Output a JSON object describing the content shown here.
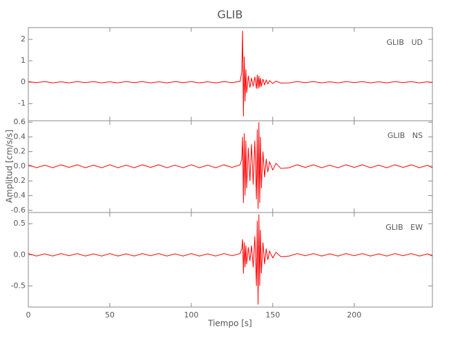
{
  "title": "GLIB",
  "xlabel": "Tiempo [s]",
  "ylabel": "Amplitud [cm/s/s]",
  "xlim": [
    0,
    248
  ],
  "xticks": [
    0,
    50,
    100,
    150,
    200
  ],
  "chart_data": [
    {
      "type": "line",
      "label": "GLIB   UD",
      "color": "#ff0000",
      "ylim": [
        -1.8,
        2.55
      ],
      "yticks": [
        -1,
        0,
        1,
        2
      ],
      "x": [
        0,
        5,
        10,
        15,
        20,
        25,
        30,
        35,
        40,
        45,
        50,
        55,
        60,
        65,
        70,
        75,
        80,
        85,
        90,
        95,
        100,
        105,
        110,
        115,
        120,
        125,
        130,
        131,
        131.5,
        132,
        132.5,
        133,
        133.5,
        134,
        135,
        136,
        137,
        138,
        139,
        140,
        140.5,
        141,
        141.5,
        142,
        142.5,
        143,
        144,
        145,
        146,
        147,
        148,
        150,
        152,
        155,
        160,
        165,
        170,
        175,
        180,
        185,
        190,
        195,
        200,
        205,
        210,
        215,
        220,
        225,
        230,
        235,
        240,
        245,
        248
      ],
      "values": [
        0.03,
        -0.02,
        0.03,
        -0.03,
        0.02,
        -0.03,
        0.03,
        -0.02,
        0.03,
        -0.03,
        0.02,
        -0.03,
        0.03,
        -0.02,
        0.03,
        -0.03,
        0.02,
        -0.03,
        0.03,
        -0.02,
        0.03,
        -0.03,
        0.02,
        -0.03,
        0.03,
        -0.02,
        0.04,
        0.5,
        2.4,
        -1.6,
        1.2,
        -0.9,
        0.6,
        -0.5,
        0.3,
        -0.25,
        0.2,
        -0.2,
        0.25,
        -0.3,
        0.35,
        -0.3,
        0.3,
        -0.25,
        0.2,
        -0.2,
        0.15,
        -0.12,
        0.1,
        -0.08,
        0.07,
        -0.06,
        0.05,
        -0.04,
        -0.03,
        0.03,
        -0.02,
        0.03,
        -0.03,
        0.02,
        -0.03,
        0.03,
        -0.02,
        0.03,
        -0.03,
        0.02,
        -0.03,
        0.03,
        -0.02,
        0.03,
        -0.03,
        0.02,
        -0.02
      ]
    },
    {
      "type": "line",
      "label": "GLIB   NS",
      "color": "#ff0000",
      "ylim": [
        -0.63,
        0.62
      ],
      "yticks": [
        -0.6,
        -0.4,
        -0.2,
        {
          "value": 0,
          "label": "0.0"
        },
        0.2,
        0.4,
        0.6
      ],
      "x": [
        0,
        5,
        10,
        15,
        20,
        25,
        30,
        35,
        40,
        45,
        50,
        55,
        60,
        65,
        70,
        75,
        80,
        85,
        90,
        95,
        100,
        105,
        110,
        115,
        120,
        125,
        130,
        131,
        131.5,
        132,
        132.5,
        133,
        133.5,
        134,
        135,
        136,
        137,
        138,
        139,
        140,
        140.5,
        141,
        141.5,
        142,
        142.5,
        143,
        144,
        145,
        146,
        147,
        148,
        150,
        152,
        155,
        160,
        165,
        170,
        175,
        180,
        185,
        190,
        195,
        200,
        205,
        210,
        215,
        220,
        225,
        230,
        235,
        240,
        245,
        248
      ],
      "values": [
        0.02,
        -0.02,
        0.015,
        -0.02,
        0.02,
        -0.015,
        0.02,
        -0.02,
        0.015,
        -0.02,
        0.02,
        -0.02,
        0.015,
        -0.02,
        0.02,
        -0.015,
        0.02,
        -0.02,
        0.015,
        -0.02,
        0.02,
        -0.02,
        0.015,
        -0.02,
        0.02,
        -0.015,
        0.02,
        0.1,
        0.4,
        -0.5,
        0.45,
        -0.4,
        0.35,
        -0.3,
        0.25,
        -0.2,
        0.3,
        -0.25,
        0.35,
        -0.45,
        0.5,
        -0.58,
        0.6,
        -0.5,
        0.4,
        -0.3,
        0.2,
        -0.15,
        0.1,
        -0.08,
        0.06,
        -0.05,
        0.04,
        -0.03,
        -0.02,
        0.02,
        -0.015,
        0.02,
        -0.02,
        0.015,
        -0.02,
        0.02,
        -0.015,
        0.02,
        -0.02,
        0.015,
        -0.02,
        0.02,
        -0.015,
        0.02,
        -0.02,
        0.015,
        -0.02
      ]
    },
    {
      "type": "line",
      "label": "GLIB   EW",
      "color": "#ff0000",
      "ylim": [
        -0.84,
        0.68
      ],
      "yticks": [
        -0.5,
        {
          "value": 0,
          "label": "0.0"
        },
        0.5
      ],
      "x": [
        0,
        5,
        10,
        15,
        20,
        25,
        30,
        35,
        40,
        45,
        50,
        55,
        60,
        65,
        70,
        75,
        80,
        85,
        90,
        95,
        100,
        105,
        110,
        115,
        120,
        125,
        130,
        131,
        131.5,
        132,
        132.5,
        133,
        133.5,
        134,
        135,
        136,
        137,
        138,
        139,
        140,
        140.5,
        141,
        141.5,
        142,
        142.5,
        143,
        144,
        145,
        146,
        147,
        148,
        150,
        152,
        155,
        160,
        165,
        170,
        175,
        180,
        185,
        190,
        195,
        200,
        205,
        210,
        215,
        220,
        225,
        230,
        235,
        240,
        245,
        248
      ],
      "values": [
        0.02,
        -0.02,
        0.015,
        -0.02,
        0.02,
        -0.015,
        0.02,
        -0.02,
        0.015,
        -0.02,
        0.02,
        -0.02,
        0.015,
        -0.02,
        0.02,
        -0.015,
        0.02,
        -0.02,
        0.015,
        -0.02,
        0.02,
        -0.02,
        0.015,
        -0.02,
        0.02,
        -0.015,
        0.02,
        0.1,
        0.25,
        -0.3,
        0.2,
        -0.2,
        0.15,
        -0.15,
        0.12,
        -0.1,
        0.15,
        -0.2,
        0.3,
        -0.5,
        0.55,
        -0.8,
        0.65,
        -0.5,
        0.4,
        -0.3,
        0.2,
        -0.15,
        0.1,
        -0.08,
        0.06,
        -0.05,
        0.04,
        -0.03,
        -0.02,
        0.02,
        -0.015,
        0.02,
        -0.02,
        0.015,
        -0.02,
        0.02,
        -0.015,
        0.02,
        -0.02,
        0.015,
        -0.02,
        0.02,
        -0.015,
        0.02,
        -0.02,
        0.015,
        -0.02
      ]
    }
  ]
}
